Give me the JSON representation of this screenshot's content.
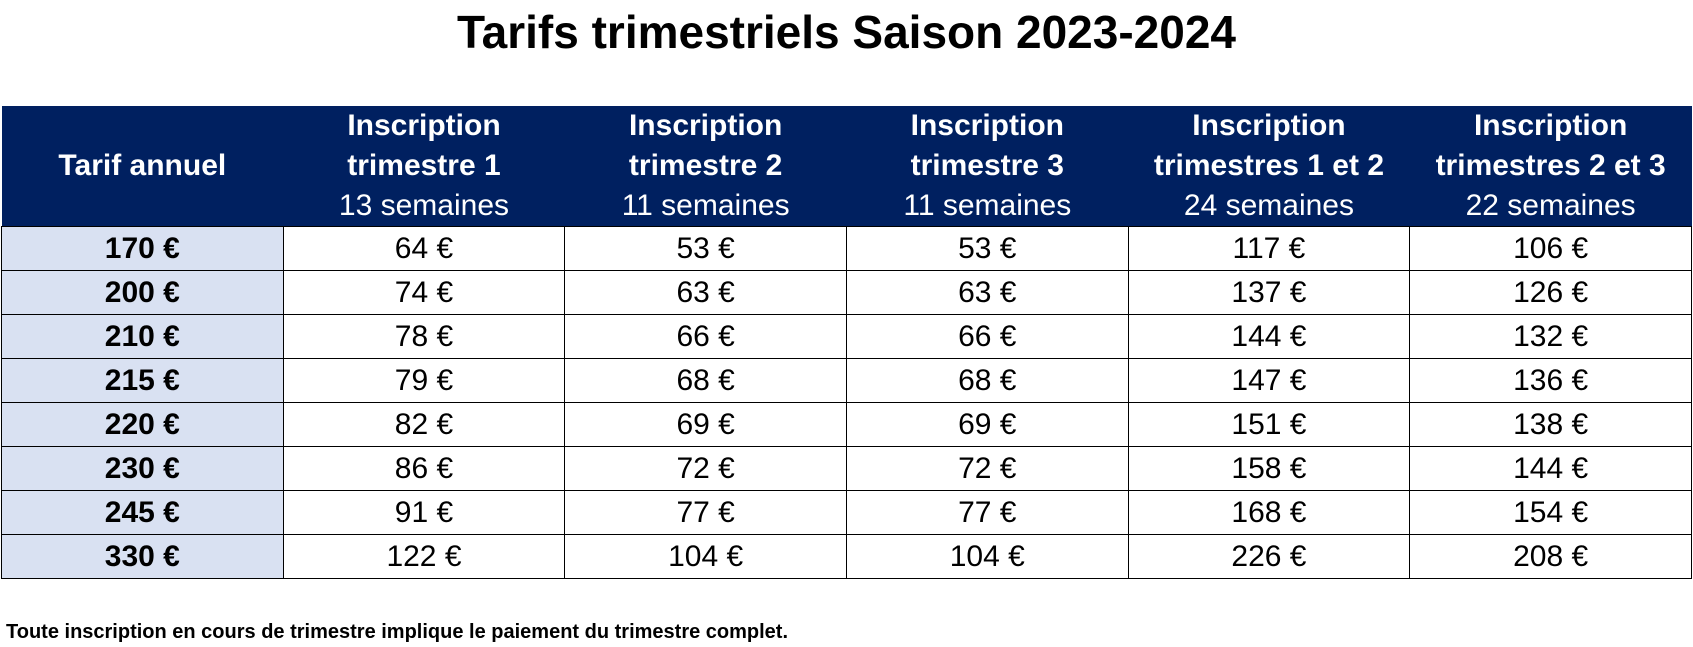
{
  "title": "Tarifs trimestriels Saison 2023-2024",
  "colors": {
    "header_bg": "#002060",
    "header_text": "#ffffff",
    "annual_col_bg": "#d9e1f2"
  },
  "table": {
    "headers": [
      {
        "line1": "Tarif annuel",
        "line2": "",
        "sub": ""
      },
      {
        "line1": "Inscription",
        "line2": "trimestre 1",
        "sub": "13 semaines"
      },
      {
        "line1": "Inscription",
        "line2": "trimestre 2",
        "sub": "11 semaines"
      },
      {
        "line1": "Inscription",
        "line2": "trimestre 3",
        "sub": "11 semaines"
      },
      {
        "line1": "Inscription",
        "line2": "trimestres 1 et 2",
        "sub": "24 semaines"
      },
      {
        "line1": "Inscription",
        "line2": "trimestres 2 et 3",
        "sub": "22 semaines"
      }
    ],
    "rows": [
      [
        "170 €",
        "64 €",
        "53 €",
        "53 €",
        "117 €",
        "106 €"
      ],
      [
        "200 €",
        "74 €",
        "63 €",
        "63 €",
        "137 €",
        "126 €"
      ],
      [
        "210 €",
        "78 €",
        "66 €",
        "66 €",
        "144 €",
        "132 €"
      ],
      [
        "215 €",
        "79 €",
        "68 €",
        "68 €",
        "147 €",
        "136 €"
      ],
      [
        "220 €",
        "82 €",
        "69 €",
        "69 €",
        "151 €",
        "138 €"
      ],
      [
        "230 €",
        "86 €",
        "72 €",
        "72 €",
        "158 €",
        "144 €"
      ],
      [
        "245 €",
        "91 €",
        "77 €",
        "77 €",
        "168 €",
        "154 €"
      ],
      [
        "330 €",
        "122 €",
        "104 €",
        "104 €",
        "226 €",
        "208 €"
      ]
    ]
  },
  "note": "Toute inscription en cours de trimestre implique le paiement du trimestre complet."
}
